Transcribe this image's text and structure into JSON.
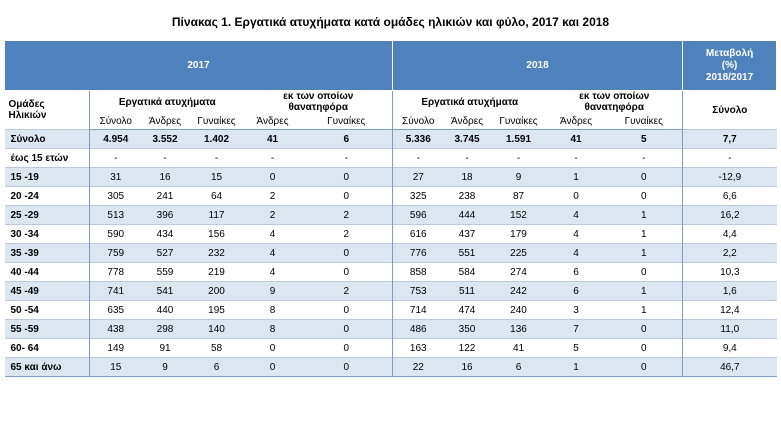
{
  "title": "Πίνακας 1. Εργατικά ατυχήματα κατά ομάδες ηλικιών και φύλο, 2017 και 2018",
  "header": {
    "year_2017": "2017",
    "year_2018": "2018",
    "change_line1": "Μεταβολή",
    "change_line2": "(%)",
    "change_line3": "2018/2017",
    "age_groups_line1": "Ομάδες",
    "age_groups_line2": "Ηλικιών",
    "work_accidents": "Εργατικά ατυχήματα",
    "fatal_line1": "εκ των οποίων",
    "fatal_line2": "θανατηφόρα",
    "total": "Σύνολο",
    "men": "Άνδρες",
    "women": "Γυναίκες",
    "change_total": "Σύνολο"
  },
  "rows": [
    {
      "label": "Σύνολο",
      "c": [
        "4.954",
        "3.552",
        "1.402",
        "41",
        "6",
        "5.336",
        "3.745",
        "1.591",
        "41",
        "5",
        "7,7"
      ]
    },
    {
      "label": "έως 15 ετών",
      "c": [
        "-",
        "-",
        "-",
        "-",
        "-",
        "-",
        "-",
        "-",
        "-",
        "-",
        "-"
      ]
    },
    {
      "label": "15 -19",
      "c": [
        "31",
        "16",
        "15",
        "0",
        "0",
        "27",
        "18",
        "9",
        "1",
        "0",
        "-12,9"
      ]
    },
    {
      "label": "20 -24",
      "c": [
        "305",
        "241",
        "64",
        "2",
        "0",
        "325",
        "238",
        "87",
        "0",
        "0",
        "6,6"
      ]
    },
    {
      "label": "25 -29",
      "c": [
        "513",
        "396",
        "117",
        "2",
        "2",
        "596",
        "444",
        "152",
        "4",
        "1",
        "16,2"
      ]
    },
    {
      "label": "30 -34",
      "c": [
        "590",
        "434",
        "156",
        "4",
        "2",
        "616",
        "437",
        "179",
        "4",
        "1",
        "4,4"
      ]
    },
    {
      "label": "35 -39",
      "c": [
        "759",
        "527",
        "232",
        "4",
        "0",
        "776",
        "551",
        "225",
        "4",
        "1",
        "2,2"
      ]
    },
    {
      "label": "40 -44",
      "c": [
        "778",
        "559",
        "219",
        "4",
        "0",
        "858",
        "584",
        "274",
        "6",
        "0",
        "10,3"
      ]
    },
    {
      "label": "45 -49",
      "c": [
        "741",
        "541",
        "200",
        "9",
        "2",
        "753",
        "511",
        "242",
        "6",
        "1",
        "1,6"
      ]
    },
    {
      "label": "50 -54",
      "c": [
        "635",
        "440",
        "195",
        "8",
        "0",
        "714",
        "474",
        "240",
        "3",
        "1",
        "12,4"
      ]
    },
    {
      "label": "55 -59",
      "c": [
        "438",
        "298",
        "140",
        "8",
        "0",
        "486",
        "350",
        "136",
        "7",
        "0",
        "11,0"
      ]
    },
    {
      "label": "60- 64",
      "c": [
        "149",
        "91",
        "58",
        "0",
        "0",
        "163",
        "122",
        "41",
        "5",
        "0",
        "9,4"
      ]
    },
    {
      "label": "65 και άνω",
      "c": [
        "15",
        "9",
        "6",
        "0",
        "0",
        "22",
        "16",
        "6",
        "1",
        "0",
        "46,7"
      ]
    }
  ]
}
